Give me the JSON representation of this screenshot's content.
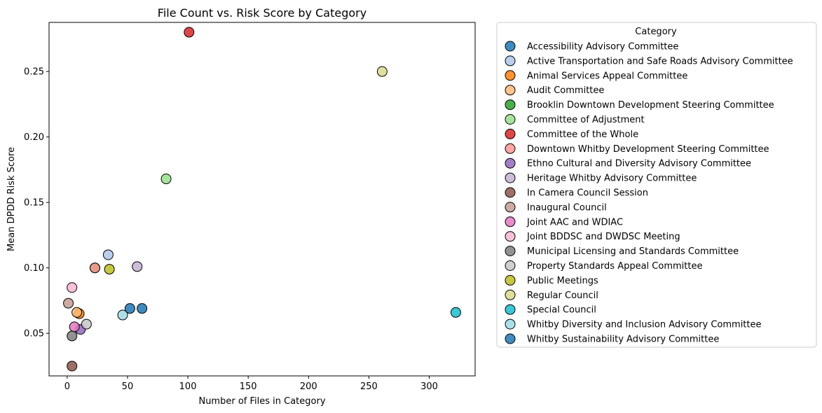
{
  "chart_data": {
    "type": "scatter",
    "title": "File Count vs. Risk Score by Category",
    "xlabel": "Number of Files in Category",
    "ylabel": "Mean DPDD Risk Score",
    "xlim": [
      -15,
      338
    ],
    "ylim": [
      0.0175,
      0.2875
    ],
    "xticks": [
      0,
      50,
      100,
      150,
      200,
      250,
      300
    ],
    "yticks": [
      0.05,
      0.1,
      0.15,
      0.2,
      0.25
    ],
    "ytick_labels": [
      "0.05",
      "0.10",
      "0.15",
      "0.20",
      "0.25"
    ],
    "grid": false,
    "legend_title": "Category",
    "legend_position": "outside-right",
    "series": [
      {
        "name": "Accessibility Advisory Committee",
        "color": "#1f77b4",
        "points": [
          [
            62,
            0.069
          ]
        ]
      },
      {
        "name": "Active Transportation and Safe Roads Advisory Committee",
        "color": "#aec7e8",
        "points": [
          [
            34,
            0.11
          ]
        ]
      },
      {
        "name": "Animal Services Appeal Committee",
        "color": "#ff7f0e",
        "points": [
          [
            10,
            0.065
          ]
        ]
      },
      {
        "name": "Audit Committee",
        "color": "#ffbb78",
        "points": [
          [
            8,
            0.066
          ]
        ]
      },
      {
        "name": "Brooklin Downtown Development Steering Committee",
        "color": "#2ca02c",
        "points": [
          [
            23,
            0.1
          ]
        ]
      },
      {
        "name": "Committee of Adjustment",
        "color": "#98df8a",
        "points": [
          [
            82,
            0.168
          ]
        ]
      },
      {
        "name": "Committee of the Whole",
        "color": "#d62728",
        "points": [
          [
            101,
            0.28
          ]
        ]
      },
      {
        "name": "Downtown Whitby Development Steering Committee",
        "color": "#ff9896",
        "points": [
          [
            23,
            0.1
          ]
        ]
      },
      {
        "name": "Ethno Cultural and Diversity Advisory Committee",
        "color": "#9467bd",
        "points": [
          [
            11,
            0.053
          ]
        ]
      },
      {
        "name": "Heritage Whitby Advisory Committee",
        "color": "#c5b0d5",
        "points": [
          [
            58,
            0.101
          ]
        ]
      },
      {
        "name": "In Camera Council Session",
        "color": "#8c564b",
        "points": [
          [
            4,
            0.025
          ]
        ]
      },
      {
        "name": "Inaugural Council",
        "color": "#c49c94",
        "points": [
          [
            1,
            0.073
          ]
        ]
      },
      {
        "name": "Joint AAC and WDIAC",
        "color": "#e377c2",
        "points": [
          [
            6,
            0.055
          ]
        ]
      },
      {
        "name": "Joint BDDSC and DWDSC Meeting",
        "color": "#f7b6d2",
        "points": [
          [
            4,
            0.085
          ]
        ]
      },
      {
        "name": "Municipal Licensing and Standards Committee",
        "color": "#7f7f7f",
        "points": [
          [
            4,
            0.048
          ]
        ]
      },
      {
        "name": "Property Standards Appeal Committee",
        "color": "#c7c7c7",
        "points": [
          [
            16,
            0.057
          ]
        ]
      },
      {
        "name": "Public Meetings",
        "color": "#bcbd22",
        "points": [
          [
            35,
            0.099
          ]
        ]
      },
      {
        "name": "Regular Council",
        "color": "#dbdb8d",
        "points": [
          [
            261,
            0.25
          ]
        ]
      },
      {
        "name": "Special Council",
        "color": "#17becf",
        "points": [
          [
            322,
            0.066
          ]
        ]
      },
      {
        "name": "Whitby Diversity and Inclusion Advisory Committee",
        "color": "#9edae5",
        "points": [
          [
            46,
            0.064
          ]
        ]
      },
      {
        "name": "Whitby Sustainability Advisory Committee",
        "color": "#1f77b4",
        "points": [
          [
            52,
            0.069
          ]
        ]
      }
    ]
  }
}
